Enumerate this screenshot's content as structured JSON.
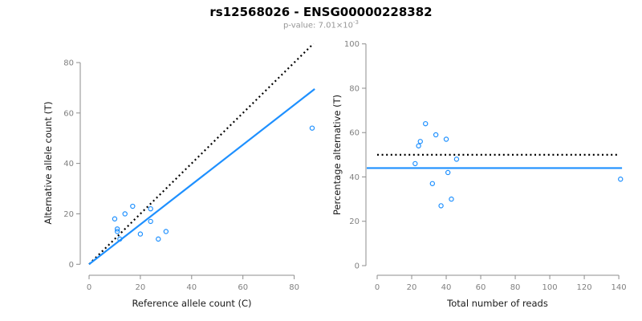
{
  "header": {
    "title": "rs12568026 - ENSG00000228382",
    "subtitle_prefix": "p-value: ",
    "pvalue_mantissa": "7.01",
    "pvalue_times": "×",
    "pvalue_base": "10",
    "pvalue_exponent": "-3"
  },
  "style": {
    "accent": "#1E90FF",
    "identity_line_color": "#000000",
    "axis_color": "#8c8c8c",
    "tick_label_color": "#808080",
    "axis_title_color": "#1a1a1a",
    "subtitle_color": "#969696"
  },
  "chart_data": [
    {
      "type": "scatter",
      "name": "allele-count-scatter",
      "xlabel": "Reference allele count (C)",
      "ylabel": "Alternative allele count (T)",
      "xlim": [
        0,
        88
      ],
      "ylim": [
        0,
        87.5
      ],
      "xticks": [
        0,
        20,
        40,
        60,
        80
      ],
      "yticks": [
        0,
        20,
        40,
        60,
        80
      ],
      "grid": false,
      "points": [
        [
          10,
          18
        ],
        [
          11,
          13
        ],
        [
          11,
          14
        ],
        [
          12,
          10
        ],
        [
          14,
          20
        ],
        [
          17,
          23
        ],
        [
          20,
          12
        ],
        [
          24,
          17
        ],
        [
          24,
          22
        ],
        [
          27,
          10
        ],
        [
          30,
          13
        ],
        [
          87,
          54
        ]
      ],
      "lines": [
        {
          "name": "identity-line",
          "style": "dotted",
          "color": "#000000",
          "slope": 1,
          "intercept": 0
        },
        {
          "name": "regression-line",
          "style": "solid",
          "color": "#1E90FF",
          "slope": 0.79,
          "intercept": 0
        }
      ]
    },
    {
      "type": "scatter",
      "name": "percentage-scatter",
      "xlabel": "Total number of reads",
      "ylabel": "Percentage alternative (T)",
      "xlim": [
        0,
        140
      ],
      "ylim": [
        0,
        100
      ],
      "xticks": [
        0,
        20,
        40,
        60,
        80,
        100,
        120,
        140
      ],
      "yticks": [
        0,
        20,
        40,
        60,
        80,
        100
      ],
      "grid": false,
      "points": [
        [
          22,
          46
        ],
        [
          24,
          54
        ],
        [
          25,
          56
        ],
        [
          28,
          64
        ],
        [
          32,
          37
        ],
        [
          34,
          59
        ],
        [
          37,
          27
        ],
        [
          40,
          57
        ],
        [
          41,
          42
        ],
        [
          43,
          30
        ],
        [
          46,
          48
        ],
        [
          141,
          39
        ]
      ],
      "lines": [
        {
          "name": "expected-50pct-line",
          "style": "dotted",
          "color": "#000000",
          "y": 50,
          "span": "ticks"
        },
        {
          "name": "mean-percentage-line",
          "style": "solid",
          "color": "#1E90FF",
          "y": 44,
          "span": "full"
        }
      ]
    }
  ]
}
